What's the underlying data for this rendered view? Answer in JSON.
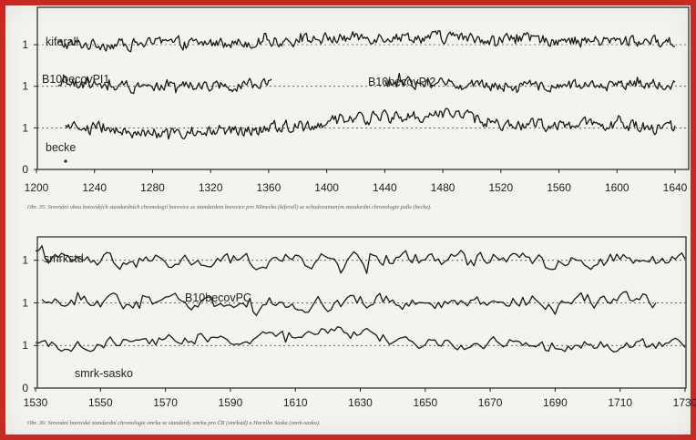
{
  "chart_data": [
    {
      "type": "line",
      "title": "",
      "xlabel": "",
      "ylabel": "",
      "xlim": [
        1200,
        1640
      ],
      "x_ticks": [
        "1200",
        "1240",
        "1280",
        "1320",
        "1360",
        "1400",
        "1440",
        "1480",
        "1520",
        "1560",
        "1600",
        "1640"
      ],
      "y_ticks": [
        "0",
        "1",
        "1",
        "1"
      ],
      "grid": "dotted horizontal",
      "caption": "Obr. 35: Srovnání obou hotovských standardních chronologií borovice se standardem borovice pro Německo (kiferall) se schodovamaným standardní chronologie jedle (becke).",
      "series": [
        {
          "name": "kiferall",
          "x_start": 1215,
          "x_end": 1640,
          "baseline": 3,
          "roughness": 0.22,
          "trend": [
            [
              1215,
              0.0
            ],
            [
              1340,
              0.05
            ],
            [
              1440,
              0.2
            ],
            [
              1500,
              0.15
            ],
            [
              1640,
              0.05
            ]
          ]
        },
        {
          "name": "B10becovPI1",
          "x_start": 1215,
          "x_end": 1362,
          "baseline": 2,
          "roughness": 0.2,
          "trend": [
            [
              1215,
              0.05
            ],
            [
              1300,
              0.0
            ],
            [
              1362,
              0.05
            ]
          ]
        },
        {
          "name": "B10becovPI2",
          "x_start": 1440,
          "x_end": 1640,
          "baseline": 2,
          "roughness": 0.2,
          "trend": [
            [
              1440,
              0.1
            ],
            [
              1540,
              0.0
            ],
            [
              1640,
              0.05
            ]
          ]
        },
        {
          "name": "becke",
          "x_start": 1220,
          "x_end": 1640,
          "baseline": 1,
          "roughness": 0.24,
          "trend": [
            [
              1220,
              0.0
            ],
            [
              1320,
              -0.15
            ],
            [
              1420,
              0.2
            ],
            [
              1480,
              0.35
            ],
            [
              1520,
              0.1
            ],
            [
              1640,
              0.0
            ]
          ]
        }
      ]
    },
    {
      "type": "line",
      "title": "",
      "xlabel": "",
      "ylabel": "",
      "xlim": [
        1530,
        1730
      ],
      "x_ticks": [
        "1530",
        "1550",
        "1570",
        "1590",
        "1610",
        "1630",
        "1650",
        "1670",
        "1690",
        "1710",
        "1730"
      ],
      "y_ticks": [
        "0",
        "1",
        "1",
        "1"
      ],
      "grid": "dotted horizontal",
      "caption": "Obr. 36: Srovnání borovské standardní chronologie smrku se standardy smrku pro ČR (smrkstd) a Horního Saska (smrk-sasko).",
      "series": [
        {
          "name": "smrkstd",
          "x_start": 1530,
          "x_end": 1730,
          "baseline": 3,
          "roughness": 0.28,
          "trend": [
            [
              1530,
              0.0
            ],
            [
              1580,
              -0.05
            ],
            [
              1650,
              0.05
            ],
            [
              1730,
              0.0
            ]
          ]
        },
        {
          "name": "B10becovPC",
          "x_start": 1532,
          "x_end": 1721,
          "baseline": 2,
          "roughness": 0.28,
          "trend": [
            [
              1532,
              0.0
            ],
            [
              1600,
              0.0
            ],
            [
              1721,
              0.05
            ]
          ]
        },
        {
          "name": "smrk-sasko",
          "x_start": 1530,
          "x_end": 1730,
          "baseline": 1,
          "roughness": 0.22,
          "trend": [
            [
              1530,
              0.0
            ],
            [
              1600,
              0.2
            ],
            [
              1620,
              0.35
            ],
            [
              1650,
              0.05
            ],
            [
              1730,
              0.0
            ]
          ]
        }
      ]
    }
  ]
}
